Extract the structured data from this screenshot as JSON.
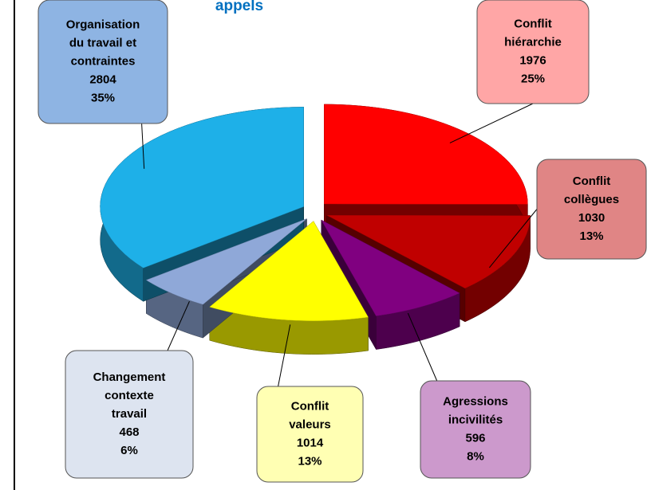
{
  "chart_data": {
    "type": "pie",
    "title": "appels",
    "categories": [
      [
        "Conflit",
        "hiérarchie"
      ],
      [
        "Conflit",
        "collègues"
      ],
      [
        "Agressions",
        "incivilités"
      ],
      [
        "Conflit",
        "valeurs"
      ],
      [
        "Changement",
        "contexte",
        "travail"
      ],
      [
        "Organisation",
        "du travail et",
        "contraintes"
      ]
    ],
    "values": [
      1976,
      1030,
      596,
      1014,
      468,
      2804
    ],
    "percent_labels": [
      "25%",
      "13%",
      "8%",
      "13%",
      "6%",
      "35%"
    ],
    "colors": [
      "#ff0000",
      "#c00000",
      "#800080",
      "#ffff00",
      "#8fa8d8",
      "#1eb0e8"
    ],
    "label_colors": [
      "#ffa6a6",
      "#e08585",
      "#cc99cc",
      "#ffffb3",
      "#dde4f0",
      "#8eb4e3"
    ]
  }
}
